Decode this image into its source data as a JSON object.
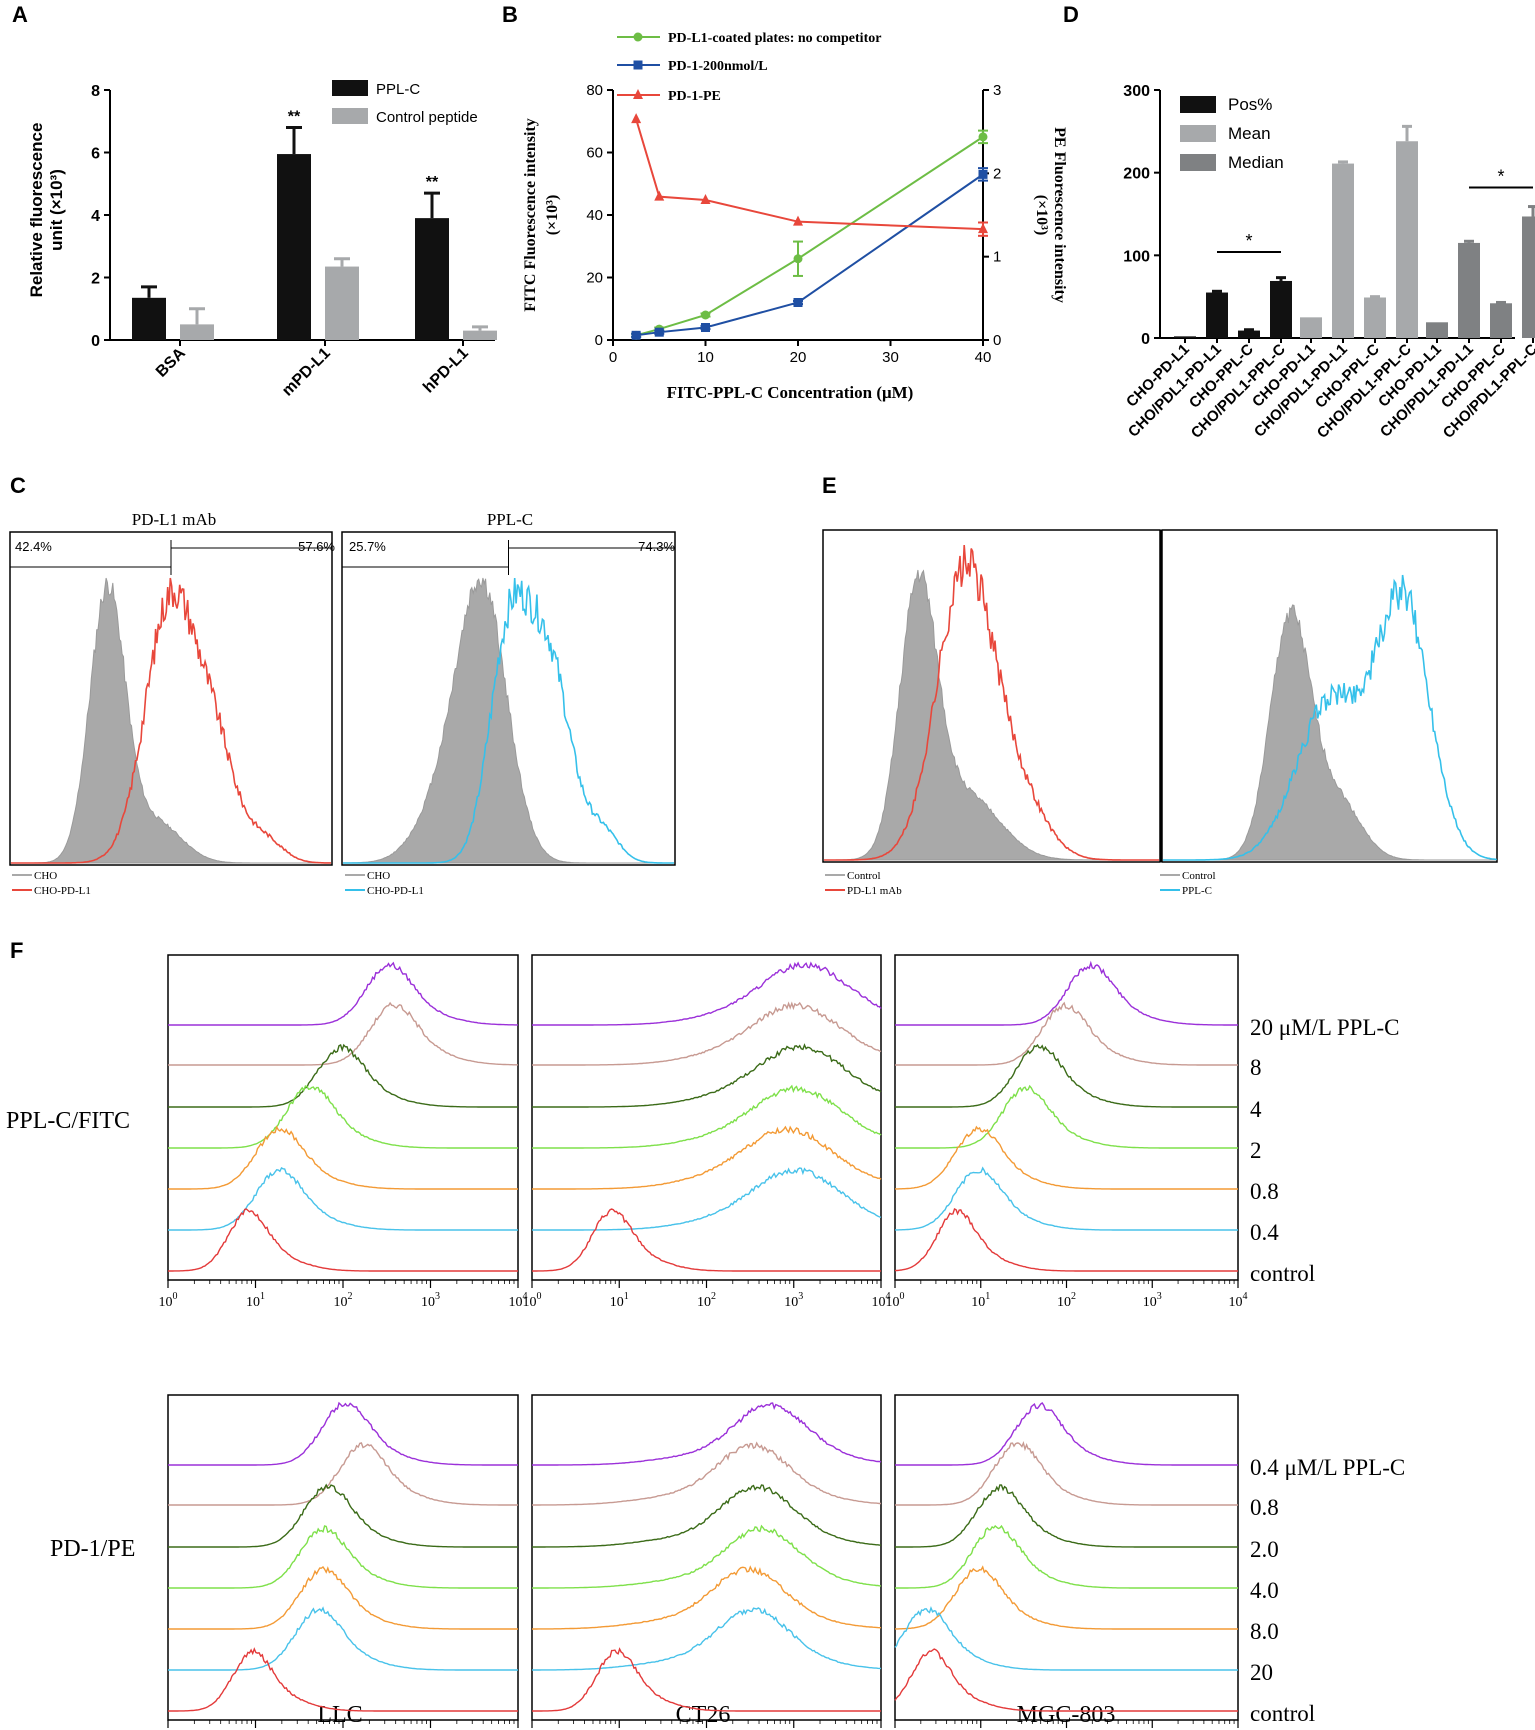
{
  "panels": {
    "A": "A",
    "B": "B",
    "C": "C",
    "D": "D",
    "E": "E",
    "F": "F"
  },
  "colors": {
    "black": "#111111",
    "light_gray": "#a7a9ab",
    "dark_gray": "#7f8183",
    "green": "#6dbd45",
    "blue": "#1f4fa3",
    "red": "#e8473b",
    "cyan": "#35c0ea",
    "hist_fill": "#a9a9a9",
    "purple": "#9b30d9",
    "rose": "#c79a92",
    "dark_green": "#3b6b18",
    "light_green": "#7ee04a",
    "orange": "#f39a35",
    "sky": "#48c2ea",
    "red_line": "#e33a3a"
  },
  "chart_data": [
    {
      "id": "A",
      "type": "bar",
      "ylabel": "Relative fluorescence unit (×10³)",
      "ylabel_line1": "Relative fluorescence",
      "ylabel_line2": "unit (×10³)",
      "ylim": [
        0,
        8
      ],
      "yticks": [
        "0",
        "2",
        "4",
        "6",
        "8"
      ],
      "categories": [
        "BSA",
        "mPD-L1",
        "hPD-L1"
      ],
      "series": [
        {
          "name": "PPL-C",
          "values": [
            1.35,
            5.95,
            3.9
          ],
          "errors": [
            0.35,
            0.85,
            0.8
          ],
          "sig": [
            "",
            "**",
            "**"
          ]
        },
        {
          "name": "Control peptide",
          "values": [
            0.5,
            2.35,
            0.3
          ],
          "errors": [
            0.5,
            0.25,
            0.12
          ],
          "sig": [
            "",
            "",
            ""
          ]
        }
      ]
    },
    {
      "id": "B",
      "type": "line",
      "xlabel": "FITC-PPL-C Concentration (μM)",
      "ylabel": "FITC Fluorescence intensity (×10³)",
      "ylabel_line1": "FITC Fluorescence intensity",
      "ylabel_line2": "(×10³)",
      "y2label": "PE Fluorescence intensity (×10³)",
      "y2label_line1": "PE Fluorescence intensity",
      "y2label_line2": "(×10³)",
      "xlim": [
        0,
        40
      ],
      "ylim": [
        0,
        80
      ],
      "y2lim": [
        0,
        3
      ],
      "xticks": [
        "0",
        "10",
        "20",
        "30",
        "40"
      ],
      "yticks": [
        "0",
        "20",
        "40",
        "60",
        "80"
      ],
      "y2ticks": [
        "0",
        "1",
        "2",
        "3"
      ],
      "series": [
        {
          "name": "PD-L1-coated plates: no competitor",
          "axis": "left",
          "x": [
            2.5,
            5,
            10,
            20,
            40
          ],
          "y": [
            1.5,
            3.5,
            8,
            26,
            65
          ],
          "err": [
            0.5,
            0.5,
            0.5,
            5.5,
            2
          ]
        },
        {
          "name": "PD-1-200nmol/L",
          "axis": "left",
          "x": [
            2.5,
            5,
            10,
            20,
            40
          ],
          "y": [
            1.5,
            2.5,
            4,
            12,
            53
          ],
          "err": [
            0.5,
            0.5,
            0.5,
            0.5,
            2
          ]
        },
        {
          "name": "PD-1-PE",
          "axis": "right",
          "x": [
            2.5,
            5,
            10,
            20,
            40
          ],
          "y": [
            2.65,
            1.72,
            1.68,
            1.42,
            1.33
          ],
          "err": [
            0,
            0,
            0,
            0,
            0.08
          ]
        }
      ]
    },
    {
      "id": "D",
      "type": "bar",
      "ylim": [
        0,
        300
      ],
      "yticks": [
        "0",
        "100",
        "200",
        "300"
      ],
      "categories": [
        "CHO-PD-L1",
        "CHO/PDL1-PD-L1",
        "CHO-PPL-C",
        "CHO/PDL1-PPL-C"
      ],
      "series": [
        {
          "name": "Pos%",
          "values": [
            2,
            55,
            9,
            69
          ],
          "errors": [
            0,
            1.5,
            1,
            4
          ]
        },
        {
          "name": "Mean",
          "values": [
            25,
            211,
            49,
            238
          ],
          "errors": [
            0,
            2,
            1,
            18
          ]
        },
        {
          "name": "Median",
          "values": [
            19,
            115,
            42,
            147
          ],
          "errors": [
            0,
            2,
            1,
            12
          ]
        }
      ],
      "sig_label": "*"
    },
    {
      "id": "C",
      "type": "histogram",
      "panels": [
        {
          "title": "PD-L1 mAb",
          "gate_left": "42.4%",
          "gate_right": "57.6%",
          "legend": [
            "CHO",
            "CHO-PD-L1"
          ]
        },
        {
          "title": "PPL-C",
          "gate_left": "25.7%",
          "gate_right": "74.3%",
          "legend": [
            "CHO",
            "CHO-PD-L1"
          ]
        }
      ]
    },
    {
      "id": "E",
      "type": "histogram",
      "panels": [
        {
          "legend": [
            "Control",
            "PD-L1 mAb"
          ]
        },
        {
          "legend": [
            "Control",
            "PPL-C"
          ]
        }
      ]
    },
    {
      "id": "F",
      "type": "histogram",
      "x_tick_base": "10",
      "x_tick_exponents": [
        "0",
        "1",
        "2",
        "3",
        "4"
      ],
      "columns": [
        "LLC",
        "CT26",
        "MGC-803"
      ],
      "rows": [
        {
          "label": "PPL-C/FITC",
          "series_labels": [
            "20 μM/L PPL-C",
            "8",
            "4",
            "2",
            "0.8",
            "0.4",
            "control"
          ],
          "peaks": [
            [
              2.5,
              2.55,
              1.95,
              1.6,
              1.25,
              1.25,
              0.9
            ],
            [
              3.1,
              3.0,
              3.05,
              3.0,
              2.9,
              3.0,
              0.9
            ],
            [
              2.25,
              1.95,
              1.65,
              1.5,
              0.95,
              0.95,
              0.7
            ]
          ]
        },
        {
          "label": "PD-1/PE",
          "series_labels": [
            "0.4 μM/L PPL-C",
            "0.8",
            "2.0",
            "4.0",
            "8.0",
            "20",
            "control"
          ],
          "peaks": [
            [
              2.0,
              2.2,
              1.8,
              1.75,
              1.75,
              1.7,
              0.95
            ],
            [
              2.7,
              2.5,
              2.55,
              2.6,
              2.45,
              2.5,
              0.95
            ],
            [
              1.65,
              1.4,
              1.2,
              1.15,
              0.95,
              0.35,
              0.4
            ]
          ]
        }
      ]
    }
  ]
}
